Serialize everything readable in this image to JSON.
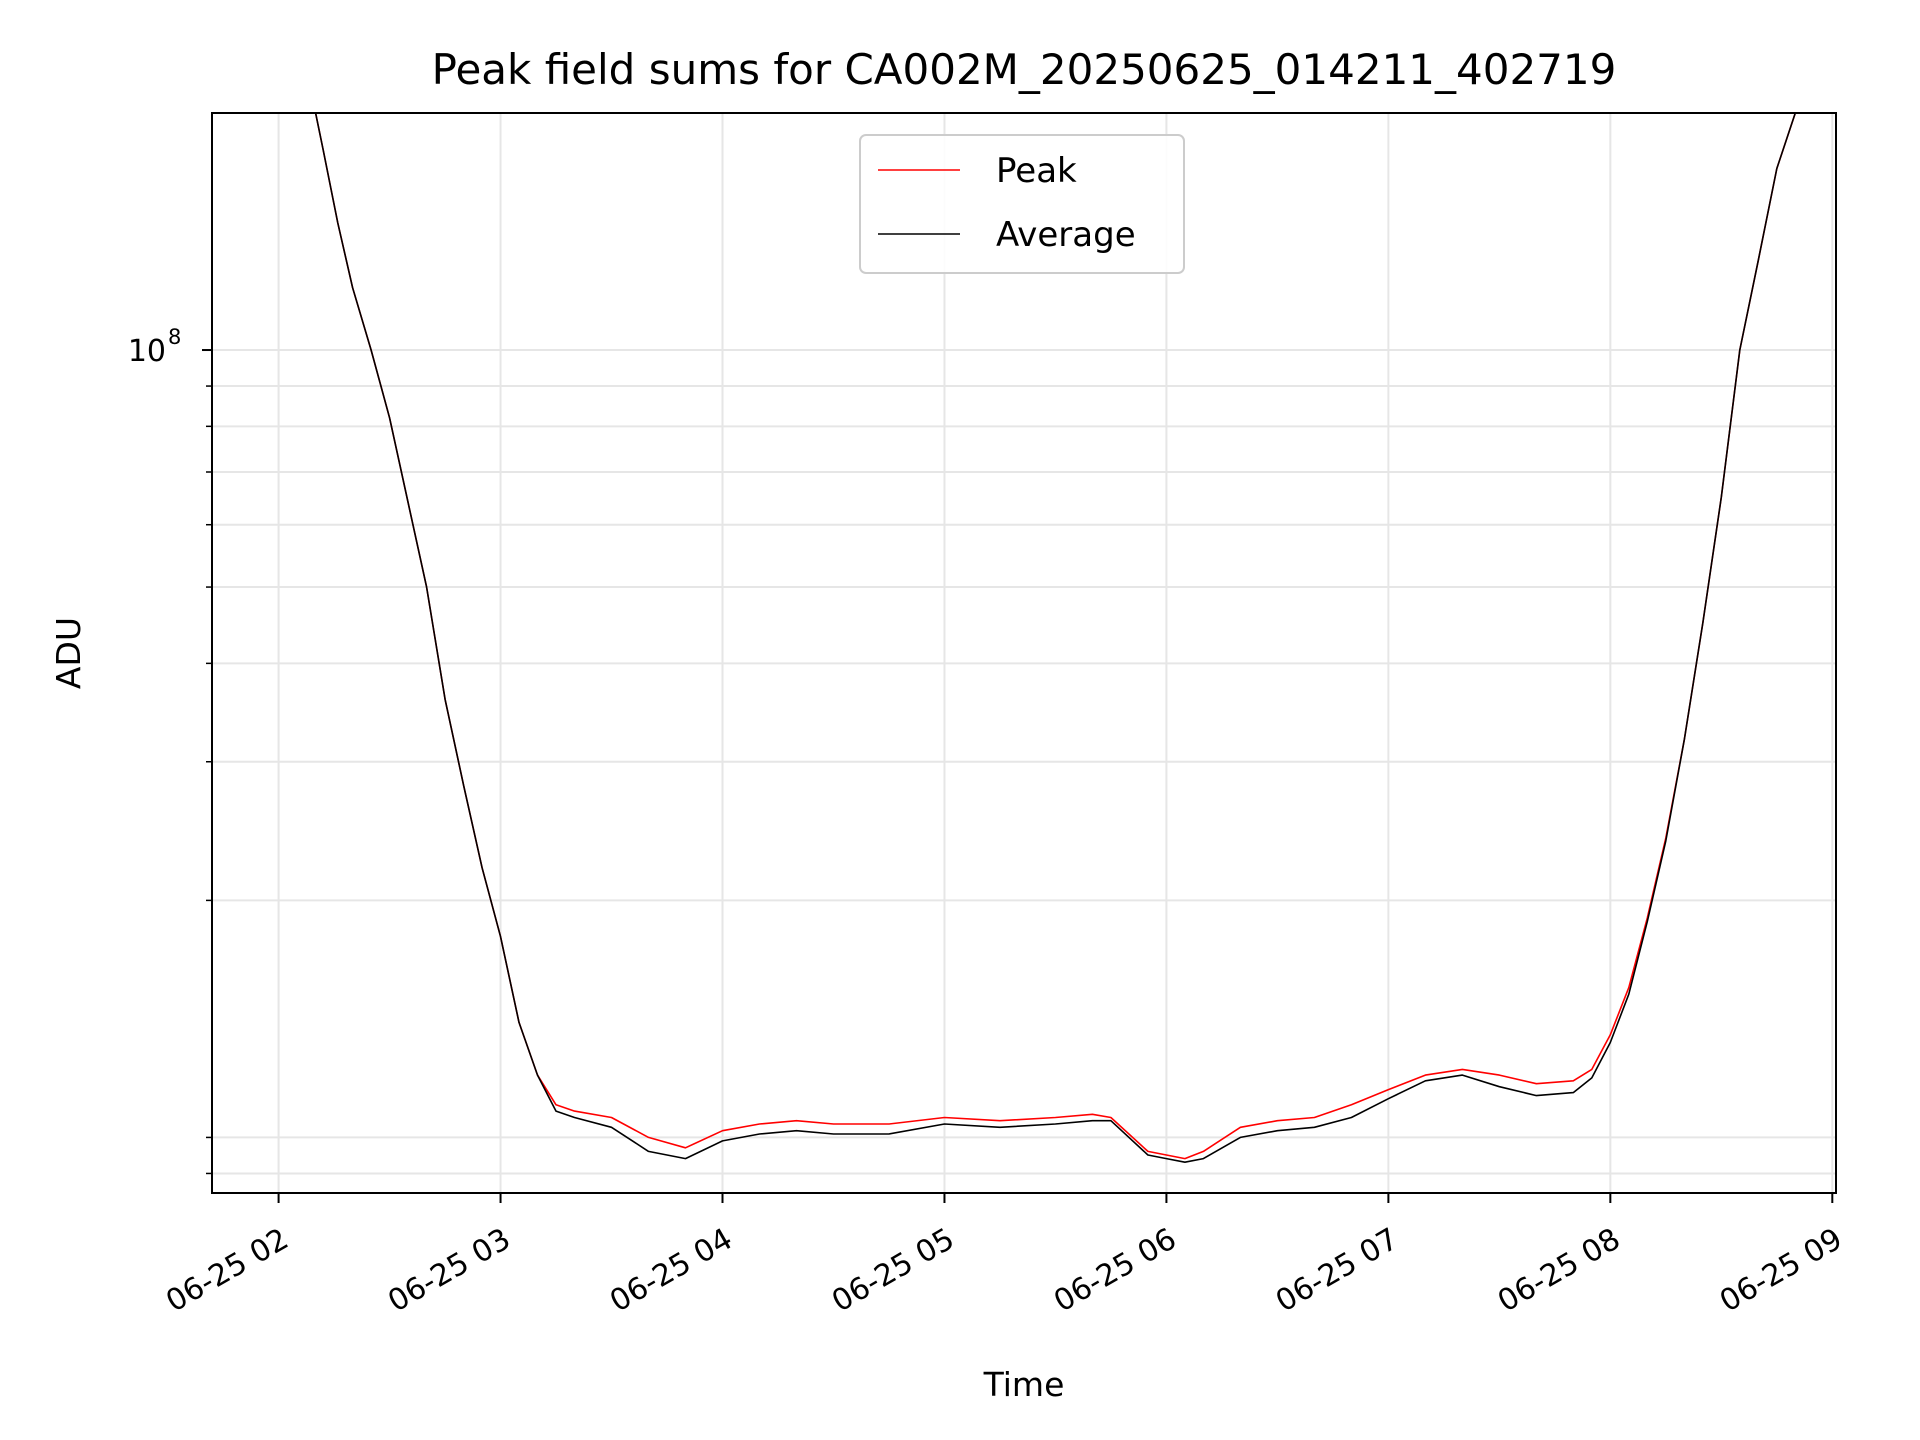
{
  "chart_data": {
    "type": "line",
    "title": "Peak field sums for CA002M_20250625_014211_402719",
    "xlabel": "Time",
    "ylabel": "ADU",
    "y_scale": "log",
    "ylim": [
      8500000,
      200000000
    ],
    "y_major_ticks": [
      {
        "value": 100000000,
        "label_base": "10",
        "label_exp": "8"
      }
    ],
    "y_minor_ticks": [
      9000000,
      10000000,
      20000000,
      30000000,
      40000000,
      50000000,
      60000000,
      70000000,
      80000000,
      90000000
    ],
    "xlim": [
      "2025-06-25 01:42",
      "2025-06-25 09:01"
    ],
    "x_ticks": [
      {
        "time": "2025-06-25 02:00",
        "label": "06-25 02"
      },
      {
        "time": "2025-06-25 03:00",
        "label": "06-25 03"
      },
      {
        "time": "2025-06-25 04:00",
        "label": "06-25 04"
      },
      {
        "time": "2025-06-25 05:00",
        "label": "06-25 05"
      },
      {
        "time": "2025-06-25 06:00",
        "label": "06-25 06"
      },
      {
        "time": "2025-06-25 07:00",
        "label": "06-25 07"
      },
      {
        "time": "2025-06-25 08:00",
        "label": "06-25 08"
      },
      {
        "time": "2025-06-25 09:00",
        "label": "06-25 09"
      }
    ],
    "grid": true,
    "legend_position": "top-center",
    "series": [
      {
        "name": "Peak",
        "color": "#ff0000",
        "x": [
          "2025-06-25 01:42",
          "2025-06-25 02:10",
          "2025-06-25 02:12",
          "2025-06-25 02:16",
          "2025-06-25 02:20",
          "2025-06-25 02:25",
          "2025-06-25 02:30",
          "2025-06-25 02:35",
          "2025-06-25 02:40",
          "2025-06-25 02:45",
          "2025-06-25 02:50",
          "2025-06-25 02:55",
          "2025-06-25 03:00",
          "2025-06-25 03:05",
          "2025-06-25 03:10",
          "2025-06-25 03:15",
          "2025-06-25 03:20",
          "2025-06-25 03:30",
          "2025-06-25 03:40",
          "2025-06-25 03:50",
          "2025-06-25 04:00",
          "2025-06-25 04:10",
          "2025-06-25 04:20",
          "2025-06-25 04:30",
          "2025-06-25 04:45",
          "2025-06-25 05:00",
          "2025-06-25 05:15",
          "2025-06-25 05:30",
          "2025-06-25 05:40",
          "2025-06-25 05:45",
          "2025-06-25 05:55",
          "2025-06-25 06:00",
          "2025-06-25 06:05",
          "2025-06-25 06:10",
          "2025-06-25 06:20",
          "2025-06-25 06:30",
          "2025-06-25 06:40",
          "2025-06-25 06:50",
          "2025-06-25 07:00",
          "2025-06-25 07:10",
          "2025-06-25 07:20",
          "2025-06-25 07:30",
          "2025-06-25 07:40",
          "2025-06-25 07:50",
          "2025-06-25 07:55",
          "2025-06-25 08:00",
          "2025-06-25 08:05",
          "2025-06-25 08:10",
          "2025-06-25 08:15",
          "2025-06-25 08:20",
          "2025-06-25 08:25",
          "2025-06-25 08:30",
          "2025-06-25 08:35",
          "2025-06-25 08:40",
          "2025-06-25 08:45",
          "2025-06-25 08:50",
          "2025-06-25 09:01"
        ],
        "y": [
          200000000,
          200000000,
          180000000,
          145000000,
          120000000,
          100000000,
          82000000,
          64000000,
          50000000,
          36000000,
          28000000,
          22000000,
          18000000,
          14000000,
          12000000,
          11000000,
          10800000,
          10600000,
          10000000,
          9700000,
          10200000,
          10400000,
          10500000,
          10400000,
          10400000,
          10600000,
          10500000,
          10600000,
          10700000,
          10600000,
          9600000,
          9500000,
          9400000,
          9600000,
          10300000,
          10500000,
          10600000,
          11000000,
          11500000,
          12000000,
          12200000,
          12000000,
          11700000,
          11800000,
          12200000,
          13500000,
          15500000,
          19000000,
          24000000,
          32000000,
          45000000,
          65000000,
          100000000,
          130000000,
          170000000,
          200000000,
          200000000
        ]
      },
      {
        "name": "Average",
        "color": "#000000",
        "x": [
          "2025-06-25 01:42",
          "2025-06-25 02:10",
          "2025-06-25 02:12",
          "2025-06-25 02:16",
          "2025-06-25 02:20",
          "2025-06-25 02:25",
          "2025-06-25 02:30",
          "2025-06-25 02:35",
          "2025-06-25 02:40",
          "2025-06-25 02:45",
          "2025-06-25 02:50",
          "2025-06-25 02:55",
          "2025-06-25 03:00",
          "2025-06-25 03:05",
          "2025-06-25 03:10",
          "2025-06-25 03:15",
          "2025-06-25 03:20",
          "2025-06-25 03:30",
          "2025-06-25 03:40",
          "2025-06-25 03:50",
          "2025-06-25 04:00",
          "2025-06-25 04:10",
          "2025-06-25 04:20",
          "2025-06-25 04:30",
          "2025-06-25 04:45",
          "2025-06-25 05:00",
          "2025-06-25 05:15",
          "2025-06-25 05:30",
          "2025-06-25 05:40",
          "2025-06-25 05:45",
          "2025-06-25 05:55",
          "2025-06-25 06:00",
          "2025-06-25 06:05",
          "2025-06-25 06:10",
          "2025-06-25 06:20",
          "2025-06-25 06:30",
          "2025-06-25 06:40",
          "2025-06-25 06:50",
          "2025-06-25 07:00",
          "2025-06-25 07:10",
          "2025-06-25 07:20",
          "2025-06-25 07:30",
          "2025-06-25 07:40",
          "2025-06-25 07:50",
          "2025-06-25 07:55",
          "2025-06-25 08:00",
          "2025-06-25 08:05",
          "2025-06-25 08:10",
          "2025-06-25 08:15",
          "2025-06-25 08:20",
          "2025-06-25 08:25",
          "2025-06-25 08:30",
          "2025-06-25 08:35",
          "2025-06-25 08:40",
          "2025-06-25 08:45",
          "2025-06-25 08:50",
          "2025-06-25 09:01"
        ],
        "y": [
          200000000,
          200000000,
          180000000,
          145000000,
          120000000,
          100000000,
          82000000,
          64000000,
          50000000,
          36000000,
          28000000,
          22000000,
          18000000,
          14000000,
          12000000,
          10800000,
          10600000,
          10300000,
          9600000,
          9400000,
          9900000,
          10100000,
          10200000,
          10100000,
          10100000,
          10400000,
          10300000,
          10400000,
          10500000,
          10500000,
          9500000,
          9400000,
          9300000,
          9400000,
          10000000,
          10200000,
          10300000,
          10600000,
          11200000,
          11800000,
          12000000,
          11600000,
          11300000,
          11400000,
          11900000,
          13200000,
          15200000,
          18800000,
          23800000,
          32000000,
          45000000,
          65000000,
          100000000,
          130000000,
          170000000,
          200000000,
          200000000
        ]
      }
    ]
  }
}
